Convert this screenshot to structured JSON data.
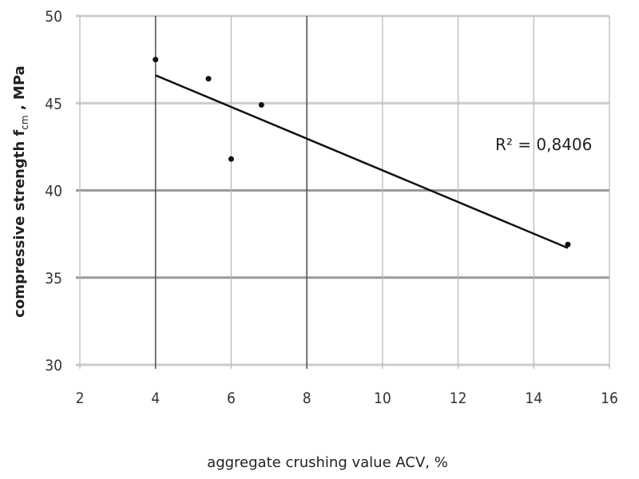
{
  "chart_data": {
    "type": "scatter",
    "title": "",
    "xlabel": "aggregate crushing value ACV, %",
    "ylabel": {
      "main": "compressive strength f",
      "subscript": "cm",
      "unit": " , MPa"
    },
    "xlim": [
      2,
      16
    ],
    "ylim": [
      30,
      50
    ],
    "xticks": [
      2,
      4,
      6,
      8,
      10,
      12,
      14,
      16
    ],
    "yticks": [
      30,
      35,
      40,
      45,
      50
    ],
    "grid": true,
    "points": [
      {
        "x": 4.0,
        "y": 47.5
      },
      {
        "x": 5.4,
        "y": 46.4
      },
      {
        "x": 6.0,
        "y": 41.8
      },
      {
        "x": 6.8,
        "y": 44.9
      },
      {
        "x": 14.9,
        "y": 36.9
      }
    ],
    "trendline": {
      "type": "linear",
      "x": [
        4.0,
        14.9
      ],
      "y": [
        46.6,
        36.7
      ]
    },
    "annotation": "R² = 0,8406"
  }
}
